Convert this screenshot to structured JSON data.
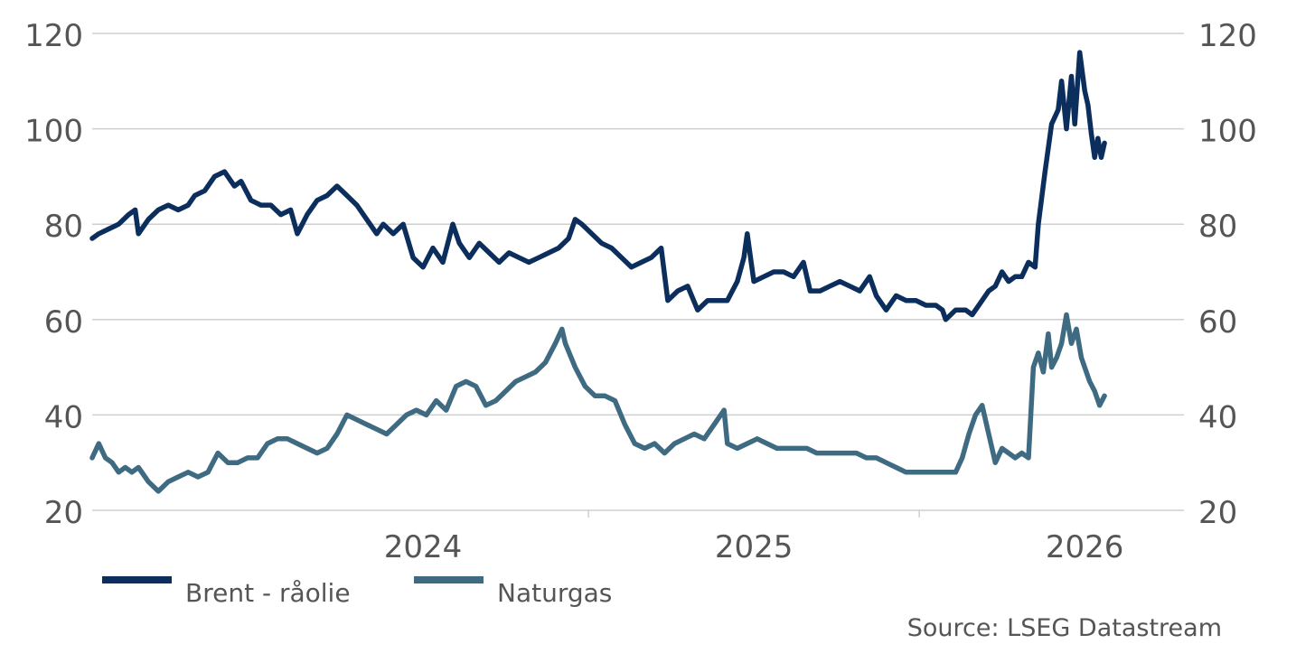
{
  "chart_data": {
    "type": "line",
    "title": "",
    "xlabel": "",
    "ylabel": "",
    "ylim": [
      20,
      120
    ],
    "yticks": [
      20,
      40,
      60,
      80,
      100,
      120
    ],
    "grid": true,
    "x_range": [
      2023.0,
      2026.3
    ],
    "x_ticks": [
      {
        "label": "2024",
        "value": 2024.0
      },
      {
        "label": "2025",
        "value": 2025.0
      },
      {
        "label": "2026",
        "value": 2026.0
      }
    ],
    "x_tick_marks": [
      2024.5,
      2025.5
    ],
    "series": [
      {
        "name": "Brent - råolie",
        "color": "#0b2e5c",
        "points": [
          [
            2023.0,
            77
          ],
          [
            2023.02,
            78
          ],
          [
            2023.05,
            79
          ],
          [
            2023.08,
            80
          ],
          [
            2023.11,
            82
          ],
          [
            2023.13,
            83
          ],
          [
            2023.14,
            78
          ],
          [
            2023.17,
            81
          ],
          [
            2023.2,
            83
          ],
          [
            2023.23,
            84
          ],
          [
            2023.26,
            83
          ],
          [
            2023.29,
            84
          ],
          [
            2023.31,
            86
          ],
          [
            2023.34,
            87
          ],
          [
            2023.37,
            90
          ],
          [
            2023.4,
            91
          ],
          [
            2023.43,
            88
          ],
          [
            2023.45,
            89
          ],
          [
            2023.48,
            85
          ],
          [
            2023.51,
            84
          ],
          [
            2023.54,
            84
          ],
          [
            2023.57,
            82
          ],
          [
            2023.6,
            83
          ],
          [
            2023.62,
            78
          ],
          [
            2023.65,
            82
          ],
          [
            2023.68,
            85
          ],
          [
            2023.71,
            86
          ],
          [
            2023.74,
            88
          ],
          [
            2023.77,
            86
          ],
          [
            2023.8,
            84
          ],
          [
            2023.83,
            81
          ],
          [
            2023.86,
            78
          ],
          [
            2023.88,
            80
          ],
          [
            2023.91,
            78
          ],
          [
            2023.94,
            80
          ],
          [
            2023.97,
            73
          ],
          [
            2024.0,
            71
          ],
          [
            2024.03,
            75
          ],
          [
            2024.06,
            72
          ],
          [
            2024.09,
            80
          ],
          [
            2024.11,
            76
          ],
          [
            2024.14,
            73
          ],
          [
            2024.17,
            76
          ],
          [
            2024.2,
            74
          ],
          [
            2024.23,
            72
          ],
          [
            2024.26,
            74
          ],
          [
            2024.29,
            73
          ],
          [
            2024.32,
            72
          ],
          [
            2024.35,
            73
          ],
          [
            2024.38,
            74
          ],
          [
            2024.41,
            75
          ],
          [
            2024.44,
            77
          ],
          [
            2024.46,
            81
          ],
          [
            2024.48,
            80
          ],
          [
            2024.51,
            78
          ],
          [
            2024.54,
            76
          ],
          [
            2024.57,
            75
          ],
          [
            2024.6,
            73
          ],
          [
            2024.63,
            71
          ],
          [
            2024.66,
            72
          ],
          [
            2024.69,
            73
          ],
          [
            2024.72,
            75
          ],
          [
            2024.74,
            64
          ],
          [
            2024.77,
            66
          ],
          [
            2024.8,
            67
          ],
          [
            2024.83,
            62
          ],
          [
            2024.86,
            64
          ],
          [
            2024.89,
            64
          ],
          [
            2024.92,
            64
          ],
          [
            2024.95,
            68
          ],
          [
            2024.97,
            73
          ],
          [
            2024.98,
            78
          ],
          [
            2025.0,
            68
          ],
          [
            2025.03,
            69
          ],
          [
            2025.06,
            70
          ],
          [
            2025.09,
            70
          ],
          [
            2025.12,
            69
          ],
          [
            2025.15,
            72
          ],
          [
            2025.17,
            66
          ],
          [
            2025.2,
            66
          ],
          [
            2025.23,
            67
          ],
          [
            2025.26,
            68
          ],
          [
            2025.29,
            67
          ],
          [
            2025.32,
            66
          ],
          [
            2025.35,
            69
          ],
          [
            2025.37,
            65
          ],
          [
            2025.4,
            62
          ],
          [
            2025.43,
            65
          ],
          [
            2025.46,
            64
          ],
          [
            2025.49,
            64
          ],
          [
            2025.52,
            63
          ],
          [
            2025.55,
            63
          ],
          [
            2025.57,
            62
          ],
          [
            2025.58,
            60
          ],
          [
            2025.61,
            62
          ],
          [
            2025.64,
            62
          ],
          [
            2025.66,
            61
          ],
          [
            2025.69,
            64
          ],
          [
            2025.71,
            66
          ],
          [
            2025.73,
            67
          ],
          [
            2025.75,
            70
          ],
          [
            2025.77,
            68
          ],
          [
            2025.79,
            69
          ],
          [
            2025.81,
            69
          ],
          [
            2025.83,
            72
          ],
          [
            2025.85,
            71
          ],
          [
            2025.86,
            80
          ],
          [
            2025.88,
            91
          ],
          [
            2025.9,
            101
          ],
          [
            2025.92,
            104
          ],
          [
            2025.93,
            110
          ],
          [
            2025.945,
            100
          ],
          [
            2025.96,
            111
          ],
          [
            2025.97,
            101
          ],
          [
            2025.985,
            116
          ],
          [
            2026.0,
            108
          ],
          [
            2026.01,
            105
          ],
          [
            2026.02,
            99
          ],
          [
            2026.03,
            94
          ],
          [
            2026.04,
            98
          ],
          [
            2026.05,
            94
          ],
          [
            2026.06,
            97
          ]
        ]
      },
      {
        "name": "Naturgas",
        "color": "#3f6b82",
        "points": [
          [
            2023.0,
            31
          ],
          [
            2023.02,
            34
          ],
          [
            2023.04,
            31
          ],
          [
            2023.06,
            30
          ],
          [
            2023.08,
            28
          ],
          [
            2023.1,
            29
          ],
          [
            2023.12,
            28
          ],
          [
            2023.14,
            29
          ],
          [
            2023.17,
            26
          ],
          [
            2023.2,
            24
          ],
          [
            2023.23,
            26
          ],
          [
            2023.26,
            27
          ],
          [
            2023.29,
            28
          ],
          [
            2023.32,
            27
          ],
          [
            2023.35,
            28
          ],
          [
            2023.38,
            32
          ],
          [
            2023.41,
            30
          ],
          [
            2023.44,
            30
          ],
          [
            2023.47,
            31
          ],
          [
            2023.5,
            31
          ],
          [
            2023.53,
            34
          ],
          [
            2023.56,
            35
          ],
          [
            2023.59,
            35
          ],
          [
            2023.62,
            34
          ],
          [
            2023.65,
            33
          ],
          [
            2023.68,
            32
          ],
          [
            2023.71,
            33
          ],
          [
            2023.74,
            36
          ],
          [
            2023.77,
            40
          ],
          [
            2023.8,
            39
          ],
          [
            2023.83,
            38
          ],
          [
            2023.86,
            37
          ],
          [
            2023.89,
            36
          ],
          [
            2023.92,
            38
          ],
          [
            2023.95,
            40
          ],
          [
            2023.98,
            41
          ],
          [
            2024.01,
            40
          ],
          [
            2024.04,
            43
          ],
          [
            2024.07,
            41
          ],
          [
            2024.1,
            46
          ],
          [
            2024.13,
            47
          ],
          [
            2024.16,
            46
          ],
          [
            2024.19,
            42
          ],
          [
            2024.22,
            43
          ],
          [
            2024.25,
            45
          ],
          [
            2024.28,
            47
          ],
          [
            2024.31,
            48
          ],
          [
            2024.34,
            49
          ],
          [
            2024.37,
            51
          ],
          [
            2024.4,
            55
          ],
          [
            2024.42,
            58
          ],
          [
            2024.43,
            55
          ],
          [
            2024.46,
            50
          ],
          [
            2024.49,
            46
          ],
          [
            2024.52,
            44
          ],
          [
            2024.55,
            44
          ],
          [
            2024.58,
            43
          ],
          [
            2024.61,
            38
          ],
          [
            2024.64,
            34
          ],
          [
            2024.67,
            33
          ],
          [
            2024.7,
            34
          ],
          [
            2024.73,
            32
          ],
          [
            2024.76,
            34
          ],
          [
            2024.79,
            35
          ],
          [
            2024.82,
            36
          ],
          [
            2024.85,
            35
          ],
          [
            2024.88,
            38
          ],
          [
            2024.91,
            41
          ],
          [
            2024.92,
            34
          ],
          [
            2024.95,
            33
          ],
          [
            2024.98,
            34
          ],
          [
            2025.01,
            35
          ],
          [
            2025.04,
            34
          ],
          [
            2025.07,
            33
          ],
          [
            2025.1,
            33
          ],
          [
            2025.13,
            33
          ],
          [
            2025.16,
            33
          ],
          [
            2025.19,
            32
          ],
          [
            2025.22,
            32
          ],
          [
            2025.25,
            32
          ],
          [
            2025.28,
            32
          ],
          [
            2025.31,
            32
          ],
          [
            2025.34,
            31
          ],
          [
            2025.37,
            31
          ],
          [
            2025.4,
            30
          ],
          [
            2025.43,
            29
          ],
          [
            2025.46,
            28
          ],
          [
            2025.49,
            28
          ],
          [
            2025.52,
            28
          ],
          [
            2025.55,
            28
          ],
          [
            2025.58,
            28
          ],
          [
            2025.61,
            28
          ],
          [
            2025.63,
            31
          ],
          [
            2025.65,
            36
          ],
          [
            2025.67,
            40
          ],
          [
            2025.69,
            42
          ],
          [
            2025.71,
            36
          ],
          [
            2025.73,
            30
          ],
          [
            2025.75,
            33
          ],
          [
            2025.77,
            32
          ],
          [
            2025.79,
            31
          ],
          [
            2025.81,
            32
          ],
          [
            2025.83,
            31
          ],
          [
            2025.845,
            50
          ],
          [
            2025.86,
            53
          ],
          [
            2025.875,
            49
          ],
          [
            2025.89,
            57
          ],
          [
            2025.9,
            50
          ],
          [
            2025.915,
            52
          ],
          [
            2025.93,
            55
          ],
          [
            2025.945,
            61
          ],
          [
            2025.96,
            55
          ],
          [
            2025.975,
            58
          ],
          [
            2025.99,
            52
          ],
          [
            2026.0,
            50
          ],
          [
            2026.015,
            47
          ],
          [
            2026.03,
            45
          ],
          [
            2026.045,
            42
          ],
          [
            2026.06,
            44
          ]
        ]
      }
    ],
    "legend": [
      {
        "label": "Brent - råolie",
        "color": "#0b2e5c"
      },
      {
        "label": "Naturgas",
        "color": "#3f6b82"
      }
    ]
  },
  "source": "Source: LSEG Datastream"
}
